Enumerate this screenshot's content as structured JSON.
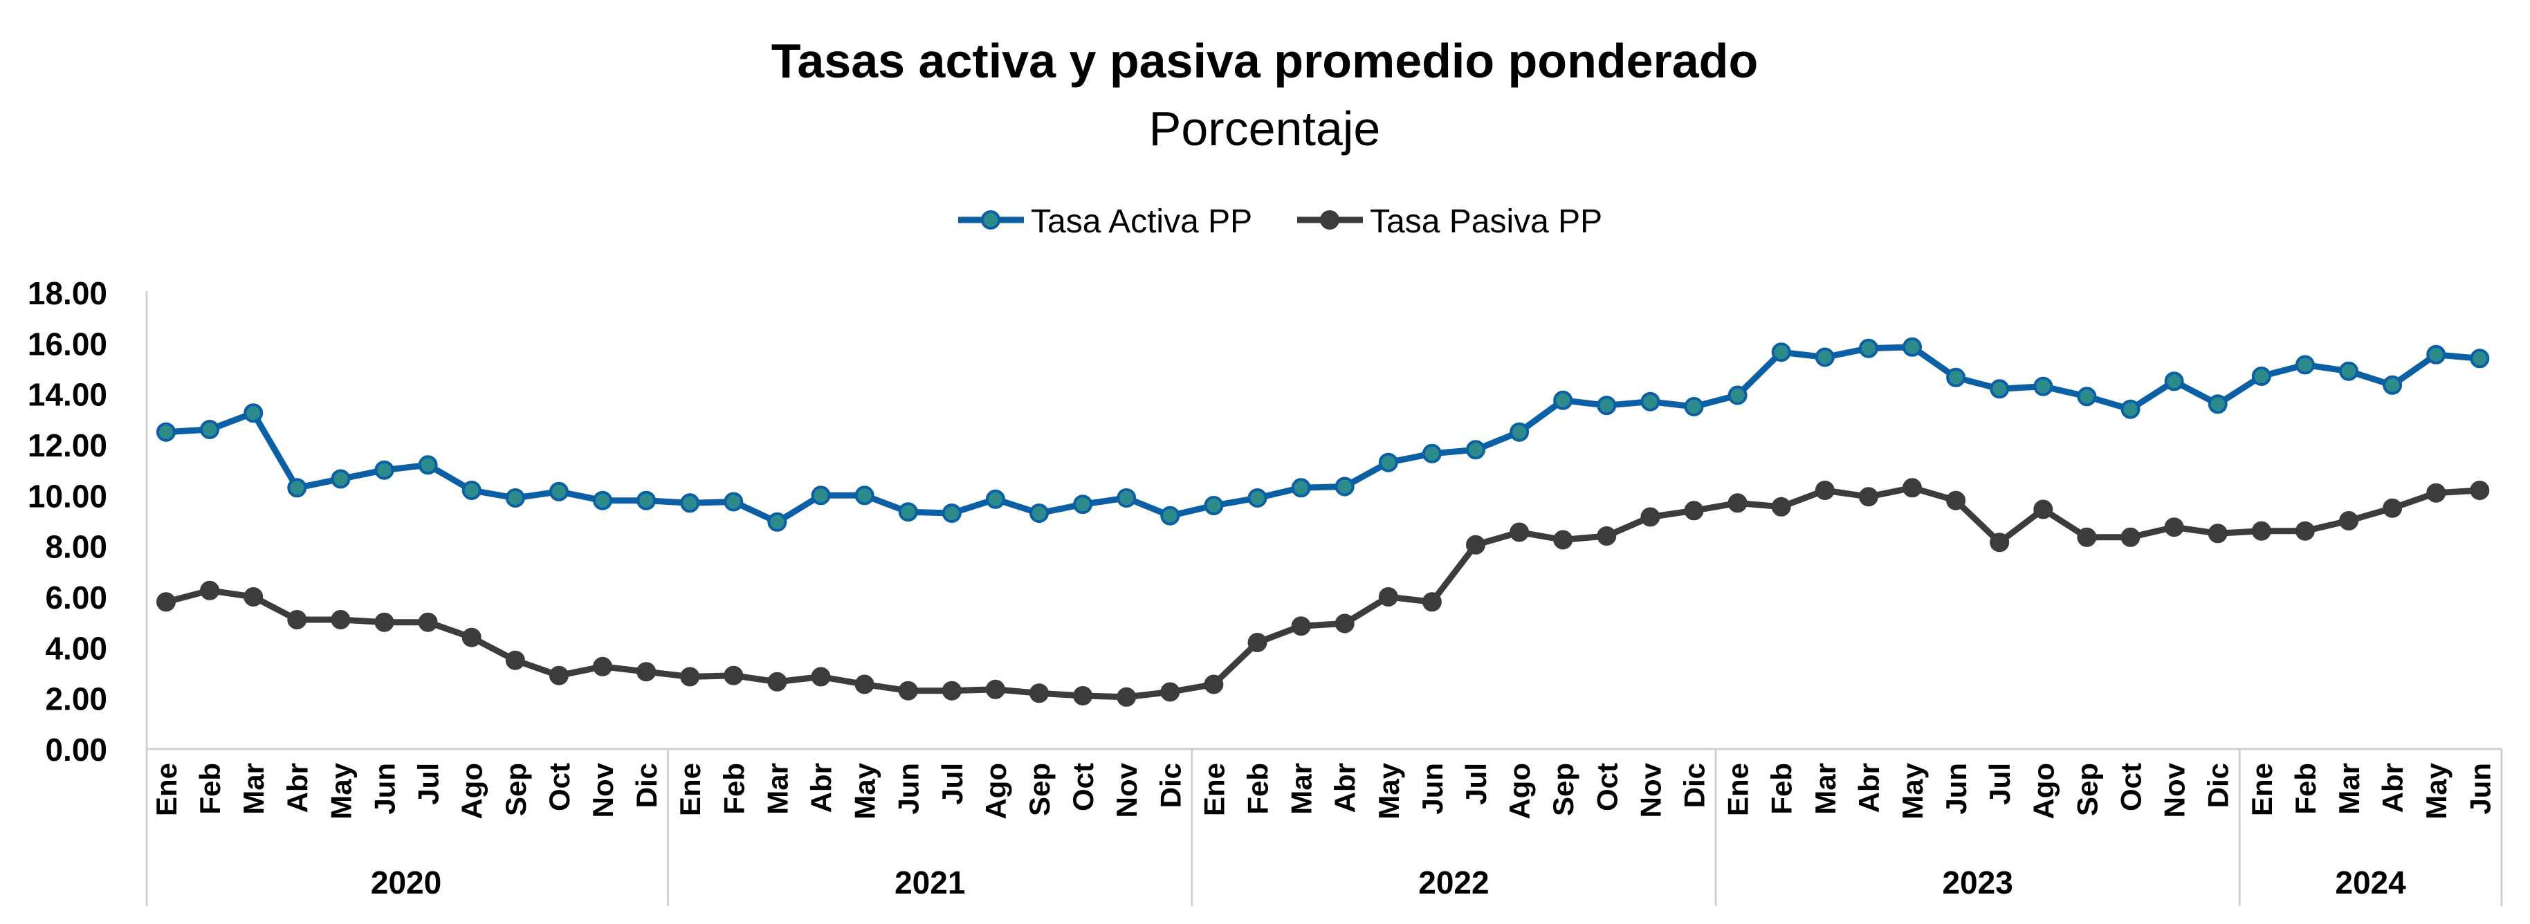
{
  "chart_data": {
    "type": "line",
    "title": "Tasas activa y pasiva promedio ponderado",
    "subtitle": "Porcentaje",
    "xlabel": "",
    "ylabel": "",
    "ylim": [
      0,
      18
    ],
    "yticks": [
      "0.00",
      "2.00",
      "4.00",
      "6.00",
      "8.00",
      "10.00",
      "12.00",
      "14.00",
      "16.00",
      "18.00"
    ],
    "grid": false,
    "legend_position": "top-center",
    "categories": [
      "Ene",
      "Feb",
      "Mar",
      "Abr",
      "May",
      "Jun",
      "Jul",
      "Ago",
      "Sep",
      "Oct",
      "Nov",
      "Dic",
      "Ene",
      "Feb",
      "Mar",
      "Abr",
      "May",
      "Jun",
      "Jul",
      "Ago",
      "Sep",
      "Oct",
      "Nov",
      "Dic",
      "Ene",
      "Feb",
      "Mar",
      "Abr",
      "May",
      "Jun",
      "Jul",
      "Ago",
      "Sep",
      "Oct",
      "Nov",
      "Dic",
      "Ene",
      "Feb",
      "Mar",
      "Abr",
      "May",
      "Jun",
      "Jul",
      "Ago",
      "Sep",
      "Oct",
      "Nov",
      "Dic",
      "Ene",
      "Feb",
      "Mar",
      "Abr",
      "May",
      "Jun"
    ],
    "years": [
      {
        "label": "2020",
        "months": 12
      },
      {
        "label": "2021",
        "months": 12
      },
      {
        "label": "2022",
        "months": 12
      },
      {
        "label": "2023",
        "months": 12
      },
      {
        "label": "2024",
        "months": 6
      }
    ],
    "series": [
      {
        "name": "Tasa Activa PP",
        "color": "#0b5fa5",
        "marker_color": "#2e8b8b",
        "values": [
          12.5,
          12.6,
          13.25,
          10.3,
          10.65,
          11.0,
          11.2,
          10.2,
          9.9,
          10.15,
          9.8,
          9.8,
          9.7,
          9.75,
          8.95,
          10.0,
          10.0,
          9.35,
          9.3,
          9.85,
          9.3,
          9.65,
          9.9,
          9.2,
          9.6,
          9.9,
          10.3,
          10.35,
          11.3,
          11.65,
          11.8,
          12.5,
          13.75,
          13.55,
          13.7,
          13.5,
          13.95,
          15.65,
          15.45,
          15.8,
          15.85,
          14.65,
          14.2,
          14.3,
          13.9,
          13.4,
          14.5,
          13.6,
          14.7,
          15.15,
          14.9,
          14.35,
          15.55,
          15.4
        ]
      },
      {
        "name": "Tasa Pasiva PP",
        "color": "#3c3c3c",
        "marker_color": "#3c3c3c",
        "values": [
          5.8,
          6.25,
          6.0,
          5.1,
          5.1,
          5.0,
          5.0,
          4.4,
          3.5,
          2.9,
          3.25,
          3.05,
          2.85,
          2.9,
          2.65,
          2.85,
          2.55,
          2.3,
          2.3,
          2.35,
          2.2,
          2.1,
          2.05,
          2.25,
          2.55,
          4.2,
          4.85,
          4.95,
          6.0,
          5.8,
          8.05,
          8.55,
          8.25,
          8.4,
          9.15,
          9.4,
          9.7,
          9.55,
          10.2,
          9.95,
          10.3,
          9.8,
          8.15,
          9.45,
          8.35,
          8.35,
          8.75,
          8.5,
          8.6,
          8.6,
          9.0,
          9.5,
          10.1,
          10.2
        ]
      }
    ]
  }
}
